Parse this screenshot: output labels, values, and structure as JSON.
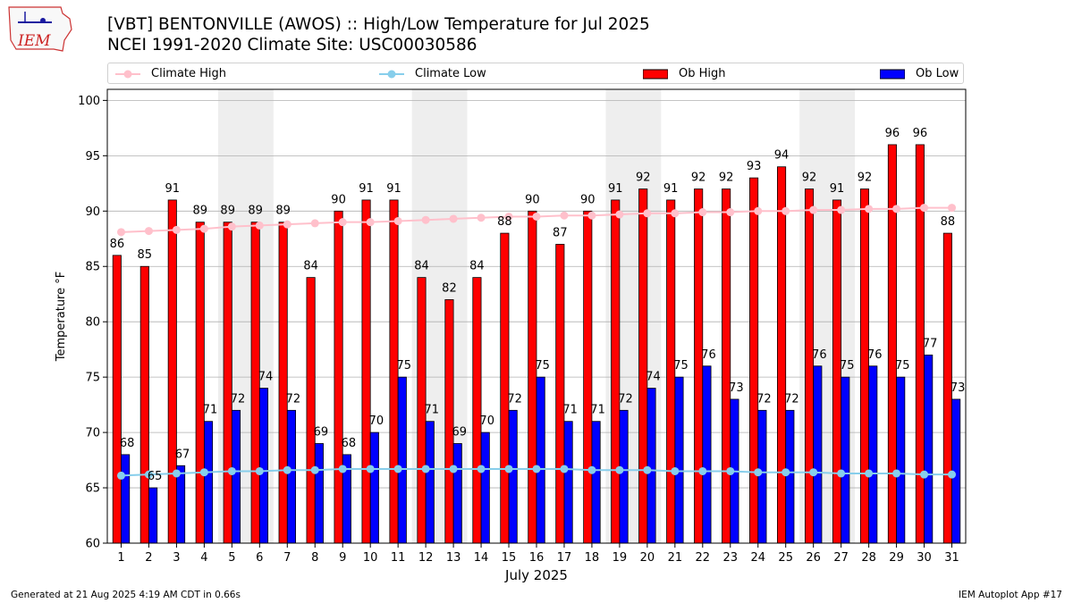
{
  "header": {
    "title_line1": "[VBT] BENTONVILLE (AWOS) :: High/Low Temperature for Jul 2025",
    "title_line2": "NCEI 1991-2020 Climate Site: USC00030586",
    "logo_text": "IEM"
  },
  "footer": {
    "generated": "Generated at 21 Aug 2025 4:19 AM CDT in 0.66s",
    "app": "IEM Autoplot App #17"
  },
  "colors": {
    "ob_high": "#ff0000",
    "ob_low": "#0000ff",
    "climate_high": "#ffc0cb",
    "climate_low": "#87ceeb",
    "weekend_band": "#eeeeee",
    "grid": "#b0b0b0"
  },
  "chart_data": {
    "type": "bar",
    "xlabel": "July 2025",
    "ylabel": "Temperature °F",
    "ylim": [
      60,
      101
    ],
    "yticks": [
      60,
      65,
      70,
      75,
      80,
      85,
      90,
      95,
      100
    ],
    "grid": "horizontal",
    "legend_position": "top",
    "x": [
      1,
      2,
      3,
      4,
      5,
      6,
      7,
      8,
      9,
      10,
      11,
      12,
      13,
      14,
      15,
      16,
      17,
      18,
      19,
      20,
      21,
      22,
      23,
      24,
      25,
      26,
      27,
      28,
      29,
      30,
      31
    ],
    "shaded_days": [
      [
        5,
        6
      ],
      [
        12,
        13
      ],
      [
        19,
        20
      ],
      [
        26,
        27
      ]
    ],
    "series": [
      {
        "name": "Climate High",
        "kind": "line",
        "color": "#ffc0cb",
        "values": [
          88.1,
          88.2,
          88.3,
          88.4,
          88.6,
          88.7,
          88.8,
          88.9,
          89.0,
          89.0,
          89.1,
          89.2,
          89.3,
          89.4,
          89.5,
          89.5,
          89.6,
          89.6,
          89.7,
          89.8,
          89.8,
          89.9,
          89.9,
          90.0,
          90.0,
          90.1,
          90.1,
          90.2,
          90.2,
          90.3,
          90.3
        ]
      },
      {
        "name": "Climate Low",
        "kind": "line",
        "color": "#87ceeb",
        "values": [
          66.1,
          66.2,
          66.3,
          66.4,
          66.5,
          66.5,
          66.6,
          66.6,
          66.7,
          66.7,
          66.7,
          66.7,
          66.7,
          66.7,
          66.7,
          66.7,
          66.7,
          66.6,
          66.6,
          66.6,
          66.5,
          66.5,
          66.5,
          66.4,
          66.4,
          66.4,
          66.3,
          66.3,
          66.3,
          66.2,
          66.2
        ]
      },
      {
        "name": "Ob High",
        "kind": "bar",
        "color": "#ff0000",
        "values": [
          86,
          85,
          91,
          89,
          89,
          89,
          89,
          84,
          90,
          91,
          91,
          84,
          82,
          84,
          88,
          90,
          87,
          90,
          91,
          92,
          91,
          92,
          92,
          93,
          94,
          92,
          91,
          92,
          96,
          96,
          88
        ]
      },
      {
        "name": "Ob Low",
        "kind": "bar",
        "color": "#0000ff",
        "values": [
          68,
          65,
          67,
          71,
          72,
          74,
          72,
          69,
          68,
          70,
          75,
          71,
          69,
          70,
          72,
          75,
          71,
          71,
          72,
          74,
          75,
          76,
          73,
          72,
          72,
          76,
          75,
          76,
          75,
          77,
          73
        ]
      }
    ]
  }
}
